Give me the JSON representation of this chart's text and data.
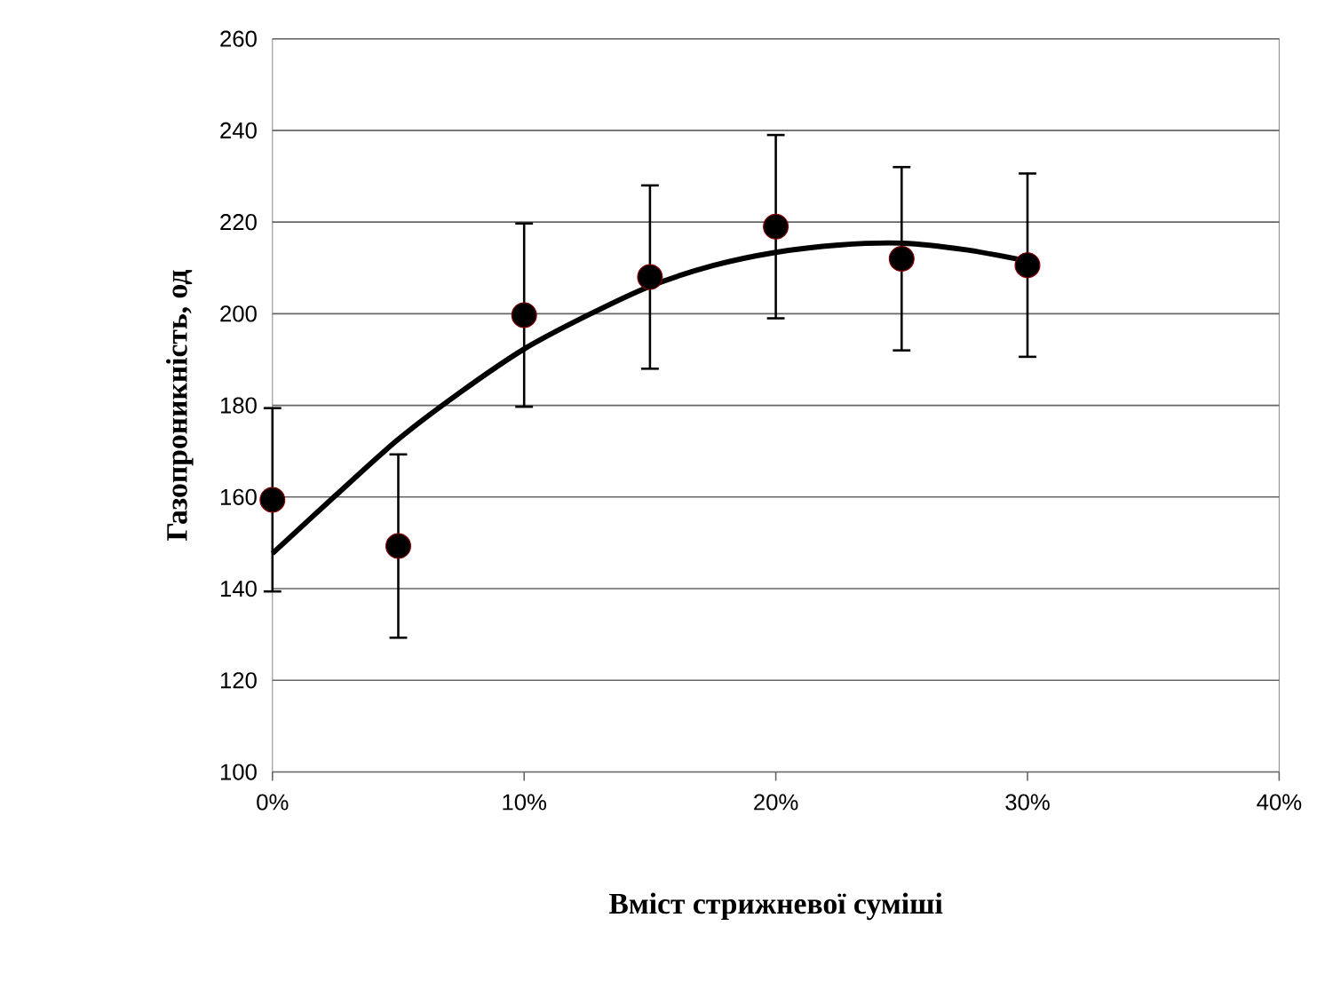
{
  "chart_data": {
    "type": "scatter",
    "xlabel": "Вміст стрижневої суміші",
    "ylabel": "Газопроникність, од",
    "xlim": [
      0,
      40
    ],
    "ylim": [
      100,
      260
    ],
    "xticks": [
      {
        "value": 0,
        "label": "0%"
      },
      {
        "value": 10,
        "label": "10%"
      },
      {
        "value": 20,
        "label": "20%"
      },
      {
        "value": 30,
        "label": "30%"
      },
      {
        "value": 40,
        "label": "40%"
      }
    ],
    "yticks": [
      100,
      120,
      140,
      160,
      180,
      200,
      220,
      240,
      260
    ],
    "grid": "y",
    "series": [
      {
        "color": "#000000",
        "marker": "circle",
        "x": [
          0,
          5,
          10,
          15,
          20,
          25,
          30
        ],
        "values": [
          159.4,
          149.3,
          199.7,
          208,
          219,
          212,
          210.6
        ],
        "errors": [
          20,
          20,
          20,
          20,
          20,
          20,
          20
        ]
      },
      {
        "type": "line",
        "color": "#000000",
        "marker": "none",
        "line_style": "solid",
        "x": [
          0,
          2.5,
          5,
          7.5,
          10,
          12.5,
          15,
          17.5,
          20,
          22.5,
          25,
          27.5,
          30
        ],
        "values": [
          147.7,
          160.3,
          172.6,
          183,
          192.3,
          199.6,
          206,
          210.5,
          213.4,
          215,
          215.4,
          214,
          211.5
        ]
      }
    ]
  }
}
